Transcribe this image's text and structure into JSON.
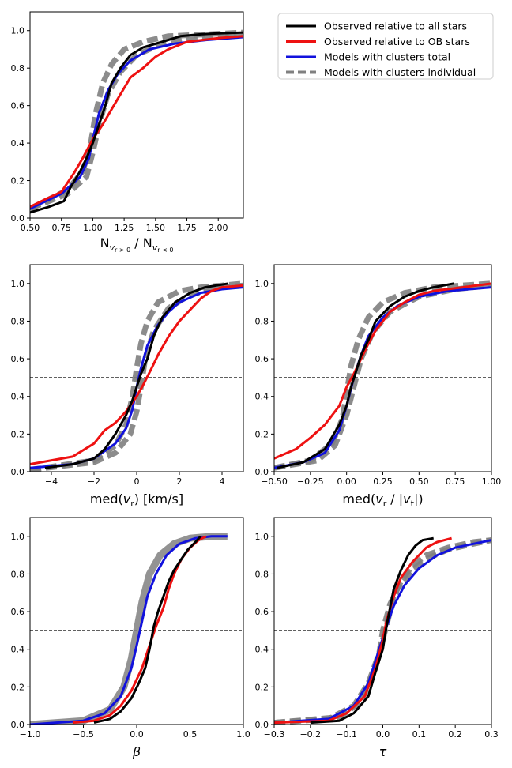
{
  "legend": {
    "items": [
      {
        "label": "Observed relative to all stars",
        "color": "#000000",
        "dash": false
      },
      {
        "label": "Observed relative to OB stars",
        "color": "#ee1111",
        "dash": false
      },
      {
        "label": "Models with clusters total",
        "color": "#1111dd",
        "dash": false
      },
      {
        "label": "Models with clusters individual",
        "color": "#808080",
        "dash": true
      }
    ]
  },
  "chart_data": [
    {
      "type": "line",
      "id": "nratio",
      "xlabel_main": "N",
      "xlabel_sub1": "v",
      "xlabel_sub1b": "r > 0",
      "xlabel_mid": " / N",
      "xlabel_sub2": "v",
      "xlabel_sub2b": "r < 0",
      "xlim": [
        0.5,
        2.2
      ],
      "ylim": [
        0,
        1.1
      ],
      "xticks": [
        "0.50",
        "0.75",
        "1.00",
        "1.25",
        "1.50",
        "1.75",
        "2.00"
      ],
      "yticks": [
        "0.0",
        "0.2",
        "0.4",
        "0.6",
        "0.8",
        "1.0"
      ],
      "hline": null,
      "series": [
        {
          "color": "#808080",
          "dash": true,
          "x": [
            0.5,
            0.8,
            0.92,
            0.98,
            1.02,
            1.08,
            1.15,
            1.25,
            1.4,
            1.6,
            1.9,
            2.2
          ],
          "y": [
            0.05,
            0.15,
            0.25,
            0.38,
            0.55,
            0.72,
            0.82,
            0.9,
            0.94,
            0.97,
            0.98,
            0.99
          ]
        },
        {
          "color": "#808080",
          "dash": true,
          "x": [
            0.5,
            0.8,
            0.95,
            1.0,
            1.05,
            1.12,
            1.22,
            1.35,
            1.55,
            1.8,
            2.2
          ],
          "y": [
            0.05,
            0.13,
            0.22,
            0.35,
            0.5,
            0.66,
            0.78,
            0.87,
            0.93,
            0.96,
            0.98
          ]
        },
        {
          "color": "#1111dd",
          "x": [
            0.5,
            0.75,
            0.9,
            0.97,
            1.0,
            1.05,
            1.12,
            1.2,
            1.3,
            1.45,
            1.65,
            1.9,
            2.2
          ],
          "y": [
            0.05,
            0.13,
            0.22,
            0.32,
            0.42,
            0.56,
            0.68,
            0.77,
            0.84,
            0.9,
            0.93,
            0.95,
            0.965
          ]
        },
        {
          "color": "#ee1111",
          "x": [
            0.5,
            0.62,
            0.75,
            0.85,
            0.92,
            1.0,
            1.08,
            1.15,
            1.22,
            1.3,
            1.4,
            1.5,
            1.6,
            1.75,
            2.0,
            2.2
          ],
          "y": [
            0.06,
            0.1,
            0.14,
            0.24,
            0.32,
            0.42,
            0.5,
            0.58,
            0.66,
            0.75,
            0.8,
            0.86,
            0.9,
            0.94,
            0.96,
            0.97
          ]
        },
        {
          "color": "#000000",
          "x": [
            0.5,
            0.65,
            0.77,
            0.82,
            0.9,
            0.95,
            1.0,
            1.05,
            1.1,
            1.15,
            1.22,
            1.3,
            1.4,
            1.55,
            1.7,
            1.85,
            2.0,
            2.2
          ],
          "y": [
            0.03,
            0.06,
            0.09,
            0.16,
            0.25,
            0.32,
            0.4,
            0.5,
            0.6,
            0.72,
            0.8,
            0.87,
            0.91,
            0.94,
            0.97,
            0.98,
            0.985,
            0.99
          ]
        }
      ]
    },
    {
      "type": "line",
      "id": "medvr",
      "xlabel": "med(v_r) [km/s]",
      "xlim": [
        -5,
        5
      ],
      "ylim": [
        0,
        1.1
      ],
      "xticks": [
        "−4",
        "−2",
        "0",
        "2",
        "4"
      ],
      "yticks": [
        "0.0",
        "0.2",
        "0.4",
        "0.6",
        "0.8",
        "1.0"
      ],
      "hline": 0.5,
      "series": [
        {
          "color": "#808080",
          "dash": true,
          "x": [
            -5,
            -2,
            -1,
            -0.5,
            -0.2,
            0,
            0.2,
            0.5,
            1,
            2,
            3,
            4,
            5
          ],
          "y": [
            0.01,
            0.06,
            0.14,
            0.25,
            0.4,
            0.55,
            0.68,
            0.8,
            0.9,
            0.96,
            0.98,
            0.99,
            1.0
          ]
        },
        {
          "color": "#808080",
          "dash": true,
          "x": [
            -5,
            -2,
            -1,
            -0.3,
            0,
            0.2,
            0.4,
            0.8,
            1.5,
            2.5,
            4,
            5
          ],
          "y": [
            0.01,
            0.05,
            0.1,
            0.2,
            0.32,
            0.45,
            0.6,
            0.75,
            0.87,
            0.94,
            0.98,
            0.99
          ]
        },
        {
          "color": "#1111dd",
          "x": [
            -5,
            -3,
            -2,
            -1,
            -0.5,
            -0.2,
            0,
            0.2,
            0.5,
            1,
            1.5,
            2,
            3,
            4,
            5
          ],
          "y": [
            0.02,
            0.04,
            0.07,
            0.15,
            0.23,
            0.33,
            0.45,
            0.55,
            0.67,
            0.78,
            0.85,
            0.9,
            0.95,
            0.97,
            0.98
          ]
        },
        {
          "color": "#ee1111",
          "x": [
            -5,
            -3,
            -2,
            -1.5,
            -1,
            -0.5,
            0,
            0.3,
            0.7,
            1,
            1.5,
            2,
            2.5,
            3,
            3.5,
            4,
            5
          ],
          "y": [
            0.04,
            0.08,
            0.15,
            0.22,
            0.26,
            0.32,
            0.4,
            0.46,
            0.55,
            0.62,
            0.72,
            0.8,
            0.86,
            0.92,
            0.96,
            0.98,
            0.99
          ]
        },
        {
          "color": "#000000",
          "x": [
            -4.3,
            -3,
            -2,
            -1.5,
            -1,
            -0.5,
            -0.2,
            0,
            0.2,
            0.5,
            0.8,
            1.2,
            1.8,
            2.5,
            3.2,
            4.3
          ],
          "y": [
            0.02,
            0.04,
            0.07,
            0.12,
            0.2,
            0.3,
            0.38,
            0.45,
            0.52,
            0.6,
            0.72,
            0.82,
            0.9,
            0.95,
            0.98,
            1.0
          ]
        }
      ]
    },
    {
      "type": "line",
      "id": "medvrvt",
      "xlabel": "med(v_r / |v_t|)",
      "xlim": [
        -0.5,
        1.0
      ],
      "ylim": [
        0,
        1.1
      ],
      "xticks": [
        "−0.50",
        "−0.25",
        "0.00",
        "0.25",
        "0.50",
        "0.75",
        "1.00"
      ],
      "yticks": [
        "0.0",
        "0.2",
        "0.4",
        "0.6",
        "0.8",
        "1.0"
      ],
      "hline": 0.5,
      "series": [
        {
          "color": "#808080",
          "dash": true,
          "x": [
            -0.5,
            -0.25,
            -0.1,
            -0.03,
            0.0,
            0.03,
            0.08,
            0.15,
            0.25,
            0.4,
            0.6,
            0.8,
            1.0
          ],
          "y": [
            0.02,
            0.06,
            0.15,
            0.28,
            0.42,
            0.56,
            0.7,
            0.82,
            0.9,
            0.95,
            0.98,
            0.99,
            1.0
          ]
        },
        {
          "color": "#808080",
          "dash": true,
          "x": [
            -0.5,
            -0.2,
            -0.08,
            0.0,
            0.05,
            0.1,
            0.18,
            0.3,
            0.5,
            0.75,
            1.0
          ],
          "y": [
            0.02,
            0.06,
            0.14,
            0.3,
            0.45,
            0.6,
            0.74,
            0.85,
            0.93,
            0.97,
            0.99
          ]
        },
        {
          "color": "#1111dd",
          "x": [
            -0.5,
            -0.3,
            -0.15,
            -0.05,
            0.0,
            0.05,
            0.1,
            0.15,
            0.25,
            0.35,
            0.5,
            0.7,
            1.0
          ],
          "y": [
            0.02,
            0.05,
            0.1,
            0.22,
            0.35,
            0.5,
            0.62,
            0.72,
            0.82,
            0.88,
            0.93,
            0.96,
            0.98
          ]
        },
        {
          "color": "#ee1111",
          "x": [
            -0.5,
            -0.35,
            -0.25,
            -0.15,
            -0.05,
            0.0,
            0.05,
            0.1,
            0.15,
            0.2,
            0.3,
            0.4,
            0.5,
            0.6,
            0.8,
            1.0
          ],
          "y": [
            0.07,
            0.12,
            0.18,
            0.25,
            0.35,
            0.45,
            0.52,
            0.6,
            0.68,
            0.75,
            0.85,
            0.9,
            0.94,
            0.96,
            0.98,
            1.0
          ]
        },
        {
          "color": "#000000",
          "x": [
            -0.48,
            -0.3,
            -0.15,
            -0.05,
            0.0,
            0.03,
            0.06,
            0.1,
            0.15,
            0.2,
            0.3,
            0.4,
            0.5,
            0.6,
            0.74
          ],
          "y": [
            0.02,
            0.05,
            0.12,
            0.25,
            0.35,
            0.45,
            0.52,
            0.62,
            0.7,
            0.8,
            0.88,
            0.93,
            0.96,
            0.98,
            1.0
          ]
        }
      ]
    },
    {
      "type": "line",
      "id": "beta",
      "xlabel": "β",
      "xlim": [
        -1.0,
        1.0
      ],
      "ylim": [
        0,
        1.1
      ],
      "xticks": [
        "−1.0",
        "−0.5",
        "0.0",
        "0.5",
        "1.0"
      ],
      "yticks": [
        "0.0",
        "0.2",
        "0.4",
        "0.6",
        "0.8",
        "1.0"
      ],
      "hline": 0.5,
      "series": [
        {
          "color": "#808080",
          "dash": false,
          "width": 9,
          "x": [
            -1,
            -0.5,
            -0.25,
            -0.12,
            -0.05,
            0,
            0.05,
            0.12,
            0.22,
            0.35,
            0.5,
            0.7,
            0.85
          ],
          "y": [
            0.0,
            0.02,
            0.08,
            0.2,
            0.35,
            0.5,
            0.65,
            0.8,
            0.9,
            0.96,
            0.99,
            1.0,
            1.0
          ]
        },
        {
          "color": "#1111dd",
          "x": [
            -1,
            -0.5,
            -0.3,
            -0.15,
            -0.05,
            0,
            0.05,
            0.1,
            0.18,
            0.28,
            0.4,
            0.55,
            0.7,
            0.85
          ],
          "y": [
            0.0,
            0.02,
            0.06,
            0.15,
            0.3,
            0.42,
            0.55,
            0.68,
            0.8,
            0.9,
            0.96,
            0.99,
            1.0,
            1.0
          ]
        },
        {
          "color": "#ee1111",
          "x": [
            -0.6,
            -0.4,
            -0.25,
            -0.15,
            -0.05,
            0.05,
            0.12,
            0.18,
            0.25,
            0.3,
            0.35,
            0.42,
            0.5,
            0.58,
            0.65
          ],
          "y": [
            0.01,
            0.02,
            0.05,
            0.1,
            0.18,
            0.3,
            0.42,
            0.52,
            0.62,
            0.72,
            0.8,
            0.88,
            0.94,
            0.98,
            1.0
          ]
        },
        {
          "color": "#000000",
          "x": [
            -0.4,
            -0.25,
            -0.15,
            -0.05,
            0.02,
            0.08,
            0.12,
            0.16,
            0.2,
            0.25,
            0.3,
            0.35,
            0.42,
            0.48,
            0.55,
            0.6
          ],
          "y": [
            0.01,
            0.03,
            0.07,
            0.14,
            0.22,
            0.3,
            0.4,
            0.52,
            0.6,
            0.68,
            0.76,
            0.82,
            0.88,
            0.93,
            0.97,
            1.0
          ]
        }
      ]
    },
    {
      "type": "line",
      "id": "tau",
      "xlabel": "τ",
      "xlim": [
        -0.3,
        0.3
      ],
      "ylim": [
        0,
        1.1
      ],
      "xticks": [
        "−0.3",
        "−0.2",
        "−0.1",
        "0.0",
        "0.1",
        "0.2",
        "0.3"
      ],
      "yticks": [
        "0.0",
        "0.2",
        "0.4",
        "0.6",
        "0.8",
        "1.0"
      ],
      "hline": 0.5,
      "series": [
        {
          "color": "#808080",
          "dash": true,
          "x": [
            -0.3,
            -0.15,
            -0.08,
            -0.04,
            -0.01,
            0.0,
            0.02,
            0.05,
            0.08,
            0.12,
            0.18,
            0.25,
            0.3
          ],
          "y": [
            0.01,
            0.03,
            0.1,
            0.22,
            0.38,
            0.5,
            0.64,
            0.76,
            0.84,
            0.9,
            0.94,
            0.97,
            0.98
          ]
        },
        {
          "color": "#808080",
          "dash": true,
          "x": [
            -0.3,
            -0.12,
            -0.06,
            -0.02,
            0.0,
            0.02,
            0.04,
            0.08,
            0.12,
            0.18,
            0.25,
            0.3
          ],
          "y": [
            0.01,
            0.04,
            0.12,
            0.3,
            0.45,
            0.6,
            0.72,
            0.82,
            0.88,
            0.93,
            0.96,
            0.98
          ]
        },
        {
          "color": "#1111dd",
          "x": [
            -0.3,
            -0.15,
            -0.08,
            -0.04,
            -0.01,
            0.01,
            0.03,
            0.06,
            0.1,
            0.15,
            0.2,
            0.25,
            0.3
          ],
          "y": [
            0.01,
            0.03,
            0.1,
            0.22,
            0.4,
            0.52,
            0.63,
            0.74,
            0.83,
            0.9,
            0.94,
            0.96,
            0.98
          ]
        },
        {
          "color": "#ee1111",
          "x": [
            -0.3,
            -0.15,
            -0.1,
            -0.05,
            -0.02,
            0.0,
            0.01,
            0.03,
            0.05,
            0.08,
            0.1,
            0.12,
            0.15,
            0.19
          ],
          "y": [
            0.01,
            0.02,
            0.06,
            0.15,
            0.3,
            0.45,
            0.55,
            0.68,
            0.78,
            0.86,
            0.9,
            0.94,
            0.97,
            0.99
          ]
        },
        {
          "color": "#000000",
          "x": [
            -0.2,
            -0.12,
            -0.08,
            -0.04,
            -0.02,
            0.0,
            0.01,
            0.02,
            0.03,
            0.05,
            0.07,
            0.09,
            0.11,
            0.14
          ],
          "y": [
            0.01,
            0.02,
            0.06,
            0.15,
            0.28,
            0.4,
            0.52,
            0.62,
            0.72,
            0.82,
            0.9,
            0.95,
            0.98,
            0.99
          ]
        }
      ]
    }
  ]
}
